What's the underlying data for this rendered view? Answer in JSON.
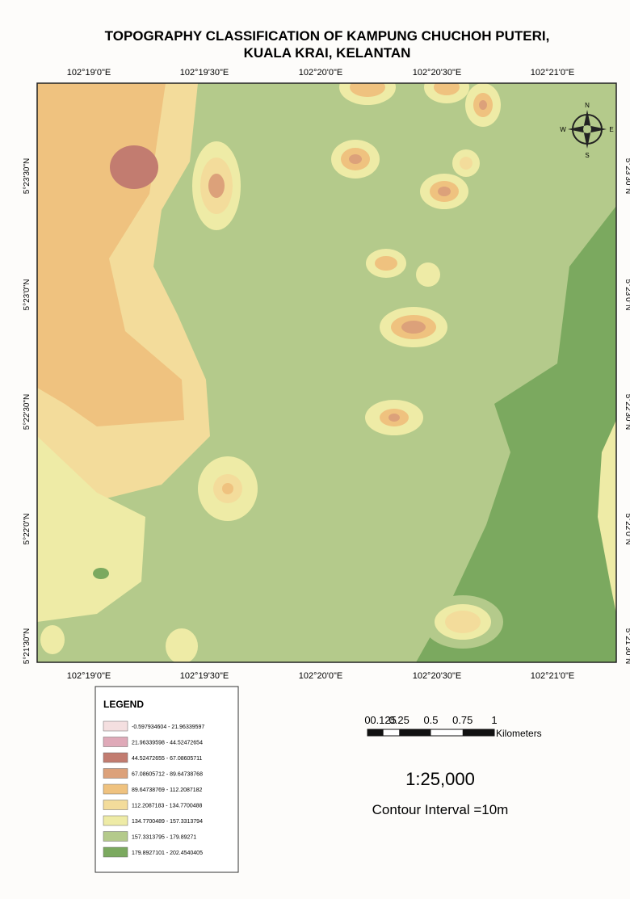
{
  "title": [
    "TOPOGRAPHY CLASSIFICATION OF KAMPUNG CHUCHOH PUTERI,",
    "KUALA KRAI, KELANTAN"
  ],
  "map": {
    "x_labels": [
      "102°19'0\"E",
      "102°19'30\"E",
      "102°20'0\"E",
      "102°20'30\"E",
      "102°21'0\"E"
    ],
    "y_labels": [
      "5°23'30\"N",
      "5°23'0\"N",
      "5°22'30\"N",
      "5°22'0\"N",
      "5°21'30\"N"
    ],
    "compass": {
      "n": "N",
      "s": "S",
      "e": "E",
      "w": "W"
    }
  },
  "legend": {
    "title": "LEGEND",
    "items": [
      {
        "label": "-0.597934604 - 21.96339597",
        "color": "#f4dfe0"
      },
      {
        "label": "21.96339598 - 44.52472654",
        "color": "#dfa9b8"
      },
      {
        "label": "44.52472655 - 67.08605711",
        "color": "#c27c70"
      },
      {
        "label": "67.08605712 - 89.64738768",
        "color": "#dca17a"
      },
      {
        "label": "89.64738769 - 112.2087182",
        "color": "#efc27f"
      },
      {
        "label": "112.2087183 - 134.7700488",
        "color": "#f3dc9b"
      },
      {
        "label": "134.7700489 - 157.3313794",
        "color": "#eeeba6"
      },
      {
        "label": "157.3313795 - 179.89271",
        "color": "#b4ca8b"
      },
      {
        "label": "179.8927101 - 202.4540405",
        "color": "#7ba95f"
      }
    ]
  },
  "scale_bar": {
    "labels": [
      "0",
      "0.125",
      "0.25",
      "0.5",
      "0.75",
      "1"
    ],
    "unit": "Kilometers"
  },
  "scale": "1:25,000",
  "contour_interval": "Contour Interval =10m"
}
